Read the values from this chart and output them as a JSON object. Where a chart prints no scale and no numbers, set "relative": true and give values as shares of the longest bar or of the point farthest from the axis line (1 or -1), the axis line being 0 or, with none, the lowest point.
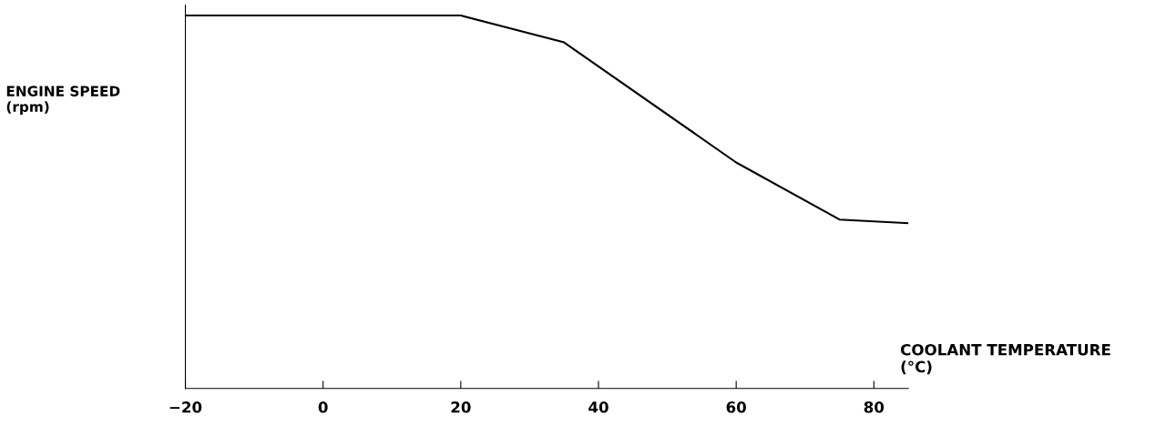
{
  "chart_data": {
    "type": "line",
    "relative": true,
    "xlabel": "COOLANT TEMPERATURE\n(°C)",
    "ylabel": "ENGINE SPEED\n(rpm)",
    "x": [
      -20,
      20,
      35,
      60,
      75,
      85
    ],
    "values": [
      1,
      1,
      0.928,
      0.606,
      0.453,
      0.443
    ],
    "color": "#000000",
    "xlim": [
      -20,
      85
    ],
    "xticks": [
      -20,
      0,
      20,
      40,
      60,
      80
    ],
    "grid": false,
    "legend": false,
    "marker": "none",
    "line_style": "solid"
  }
}
